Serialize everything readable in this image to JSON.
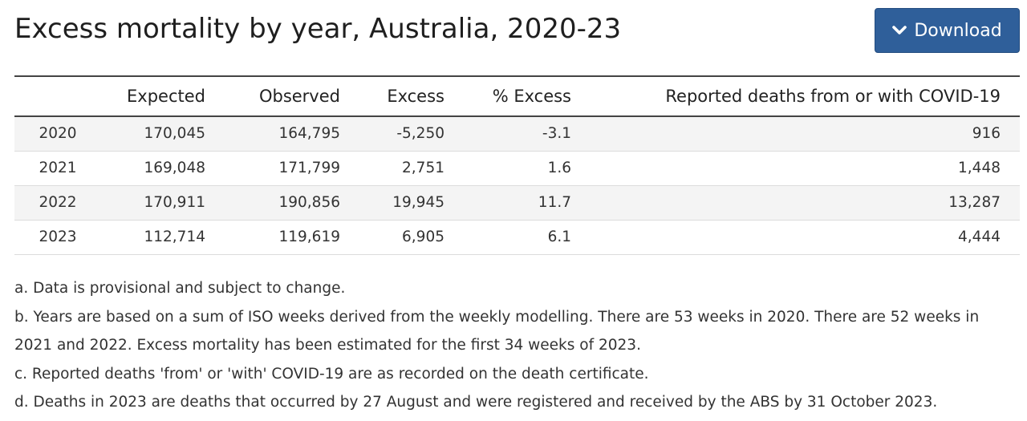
{
  "header": {
    "title": "Excess mortality by year, Australia, 2020-23",
    "download_label": "Download",
    "download_icon": "chevron-down-icon"
  },
  "colors": {
    "button_background": "#2f5f9a",
    "button_text": "#ffffff",
    "row_stripe": "#f4f4f4",
    "rule": "#444444"
  },
  "chart_data": {
    "type": "table",
    "title": "Excess mortality by year, Australia, 2020-23",
    "columns": [
      "",
      "Expected",
      "Observed",
      "Excess",
      "% Excess",
      "Reported deaths from or with COVID-19"
    ],
    "rows": [
      {
        "year": "2020",
        "expected": "170,045",
        "observed": "164,795",
        "excess": "-5,250",
        "pct_excess": "-3.1",
        "covid_deaths": "916"
      },
      {
        "year": "2021",
        "expected": "169,048",
        "observed": "171,799",
        "excess": "2,751",
        "pct_excess": "1.6",
        "covid_deaths": "1,448"
      },
      {
        "year": "2022",
        "expected": "170,911",
        "observed": "190,856",
        "excess": "19,945",
        "pct_excess": "11.7",
        "covid_deaths": "13,287"
      },
      {
        "year": "2023",
        "expected": "112,714",
        "observed": "119,619",
        "excess": "6,905",
        "pct_excess": "6.1",
        "covid_deaths": "4,444"
      }
    ]
  },
  "notes": [
    "a. Data is provisional and subject to change.",
    "b. Years are based on a sum of ISO weeks derived from the weekly modelling. There are 53 weeks in 2020. There are 52 weeks in 2021 and 2022. Excess mortality has been estimated for the first 34 weeks of 2023.",
    "c. Reported deaths 'from' or 'with' COVID-19 are as recorded on the death certificate.",
    "d. Deaths in 2023 are deaths that occurred by 27 August and were registered and received by the ABS by 31 October 2023."
  ]
}
